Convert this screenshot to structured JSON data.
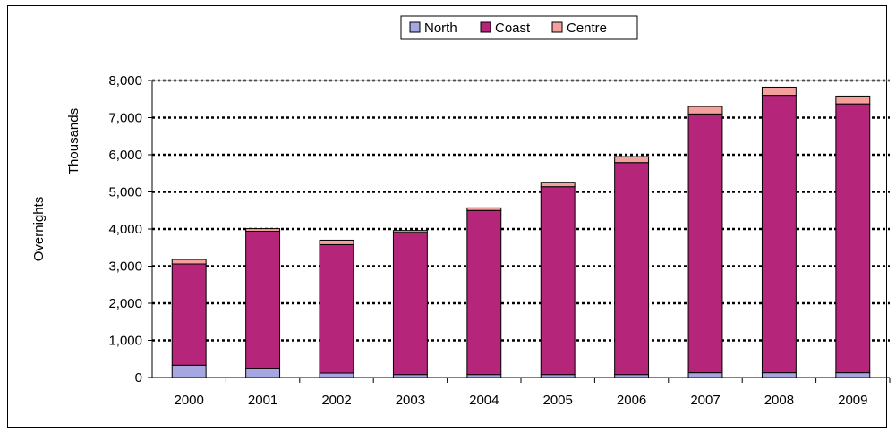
{
  "chart_data": {
    "type": "bar",
    "stacked": true,
    "categories": [
      "2000",
      "2001",
      "2002",
      "2003",
      "2004",
      "2005",
      "2006",
      "2007",
      "2008",
      "2009"
    ],
    "series": [
      {
        "name": "North",
        "color": "#A6A6E0",
        "values": [
          330,
          250,
          120,
          80,
          80,
          80,
          80,
          130,
          130,
          130
        ]
      },
      {
        "name": "Coast",
        "color": "#B5267A",
        "values": [
          2730,
          3690,
          3460,
          3830,
          4420,
          5060,
          5710,
          6970,
          7470,
          7240
        ]
      },
      {
        "name": "Centre",
        "color": "#F4A09C",
        "values": [
          120,
          70,
          120,
          50,
          70,
          120,
          160,
          200,
          220,
          210
        ]
      }
    ],
    "ylabel": "Overnights",
    "yunit": "Thousands",
    "ylim": [
      0,
      8000
    ],
    "yticks": [
      "0",
      "1,000",
      "2,000",
      "3,000",
      "4,000",
      "5,000",
      "6,000",
      "7,000",
      "8,000"
    ],
    "grid": true,
    "legend": "top-center"
  }
}
